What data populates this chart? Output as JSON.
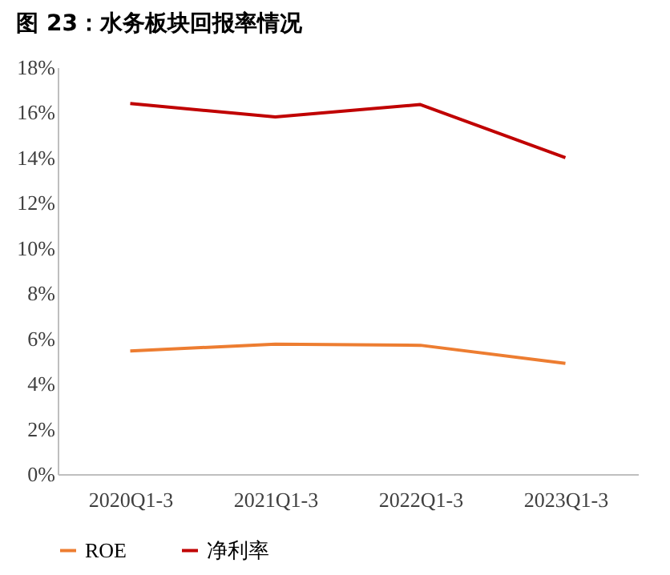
{
  "chart_data": {
    "type": "line",
    "title": "图 23：水务板块回报率情况",
    "categories": [
      "2020Q1-3",
      "2021Q1-3",
      "2022Q1-3",
      "2023Q1-3"
    ],
    "series": [
      {
        "name": "ROE",
        "color": "#ed7d31",
        "values": [
          5.45,
          5.75,
          5.7,
          4.9
        ]
      },
      {
        "name": "净利率",
        "color": "#c00000",
        "values": [
          16.4,
          15.8,
          16.35,
          14.0
        ]
      }
    ],
    "ylim": [
      0,
      18
    ],
    "yticks": [
      {
        "value": 0,
        "label": "0%"
      },
      {
        "value": 2,
        "label": "2%"
      },
      {
        "value": 4,
        "label": "4%"
      },
      {
        "value": 6,
        "label": "6%"
      },
      {
        "value": 8,
        "label": "8%"
      },
      {
        "value": 10,
        "label": "10%"
      },
      {
        "value": 12,
        "label": "12%"
      },
      {
        "value": 14,
        "label": "14%"
      },
      {
        "value": 16,
        "label": "16%"
      },
      {
        "value": 18,
        "label": "18%"
      }
    ],
    "grid": false,
    "legend": "bottom",
    "marker": "none",
    "line_style": "solid"
  }
}
